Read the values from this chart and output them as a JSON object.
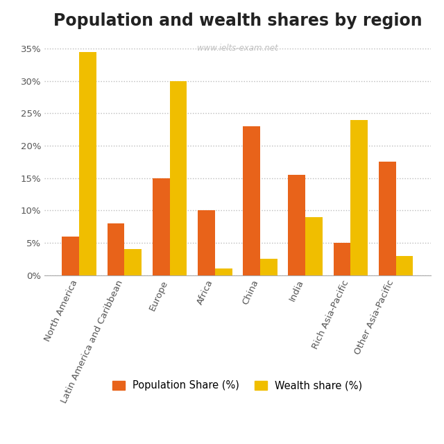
{
  "title": "Population and wealth shares by region",
  "watermark": "www.ielts-exam.net",
  "categories": [
    "North America",
    "Latin America and Caribbean",
    "Europe",
    "Africa",
    "China",
    "India",
    "Rich Asia-Pacific",
    "Other Asia-Pacific"
  ],
  "population_share": [
    6,
    8,
    15,
    10,
    23,
    15.5,
    5,
    17.5
  ],
  "wealth_share": [
    34.5,
    4,
    30,
    1,
    2.5,
    9,
    24,
    3
  ],
  "bar_color_population": "#E8631A",
  "bar_color_wealth": "#F0BE00",
  "background_color": "#ffffff",
  "ylim": [
    0,
    37
  ],
  "yticks": [
    0,
    5,
    10,
    15,
    20,
    25,
    30,
    35
  ],
  "ytick_labels": [
    "0%",
    "5%",
    "10%",
    "15%",
    "20%",
    "25%",
    "30%",
    "35%"
  ],
  "legend_population": "Population Share (%)",
  "legend_wealth": "Wealth share (%)",
  "title_fontsize": 17,
  "tick_fontsize": 9.5,
  "legend_fontsize": 10.5,
  "bar_width": 0.38,
  "grid_color": "#bbbbbb",
  "label_rotation": 65,
  "label_color": "#555555"
}
